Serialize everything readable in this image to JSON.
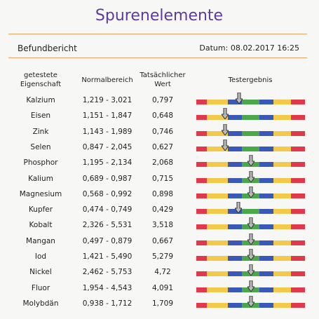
{
  "header": {
    "title": "Spurenelemente",
    "subtitle": "Befundbericht",
    "date": "Datum: 08.02.2017 16:25"
  },
  "table": {
    "header": [
      [
        "getestete",
        "Eigenschaft"
      ],
      [
        "Normalbereich"
      ],
      [
        "Tatsächlicher",
        "Wert"
      ],
      [
        "Testergebnis"
      ]
    ],
    "rows": [
      [
        "Kalzium",
        "1,219 - 3,021",
        "0,797"
      ],
      [
        "Eisen",
        "1,151 - 1,847",
        "0,648"
      ],
      [
        "Zink",
        "1,143 - 1,989",
        "0,746"
      ],
      [
        "Selen",
        "0,847 - 2,045",
        "0,627"
      ],
      [
        "Phosphor",
        "1,195 - 2,134",
        "2,068"
      ],
      [
        "Kalium",
        "0,689 - 0,987",
        "0,715"
      ],
      [
        "Magnesium",
        "0,568 - 0,992",
        "0,898"
      ],
      [
        "Kupfer",
        "0,474 - 0,749",
        "0,429"
      ],
      [
        "Kobalt",
        "2,326 - 5,531",
        "3,518"
      ],
      [
        "Mangan",
        "0,497 - 0,879",
        "0,667"
      ],
      [
        "Iod",
        "1,421 - 5,490",
        "5,279"
      ],
      [
        "Nickel",
        "2,462 - 5,753",
        "4,72"
      ],
      [
        "Fluor",
        "1,954 - 4,543",
        "4,091"
      ],
      [
        "Molybdän",
        "0,938 - 1,712",
        "1,709"
      ]
    ]
  }
}
